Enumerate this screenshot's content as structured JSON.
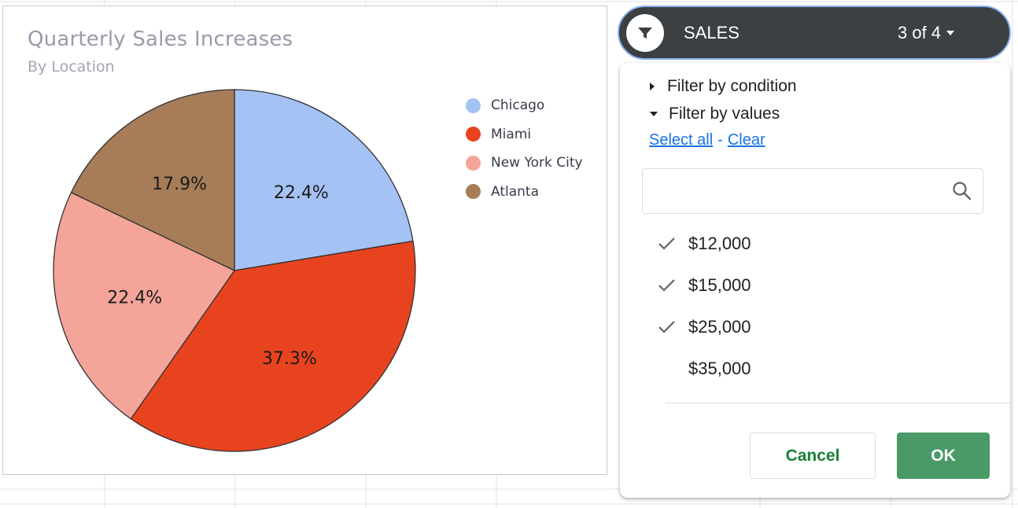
{
  "chart_data": {
    "type": "pie",
    "title": "Quarterly Sales Increases",
    "subtitle": "By Location",
    "categories": [
      "Chicago",
      "Miami",
      "New York City",
      "Atlanta"
    ],
    "values": [
      22.4,
      37.3,
      22.4,
      17.9
    ],
    "labels": [
      "22.4%",
      "37.3%",
      "22.4%",
      "17.9%"
    ],
    "colors": [
      "#a4c2f4",
      "#e8431f",
      "#f4a499",
      "#a67d58"
    ],
    "legend_position": "right"
  },
  "filter": {
    "column_name": "SALES",
    "count_label": "3 of 4",
    "filter_by_condition": "Filter by condition",
    "filter_by_values": "Filter by values",
    "select_all": "Select all",
    "separator": "-",
    "clear": "Clear",
    "search_placeholder": "",
    "values": [
      {
        "label": "$12,000",
        "checked": true
      },
      {
        "label": "$15,000",
        "checked": true
      },
      {
        "label": "$25,000",
        "checked": true
      },
      {
        "label": "$35,000",
        "checked": false
      }
    ],
    "cancel_label": "Cancel",
    "ok_label": "OK"
  }
}
